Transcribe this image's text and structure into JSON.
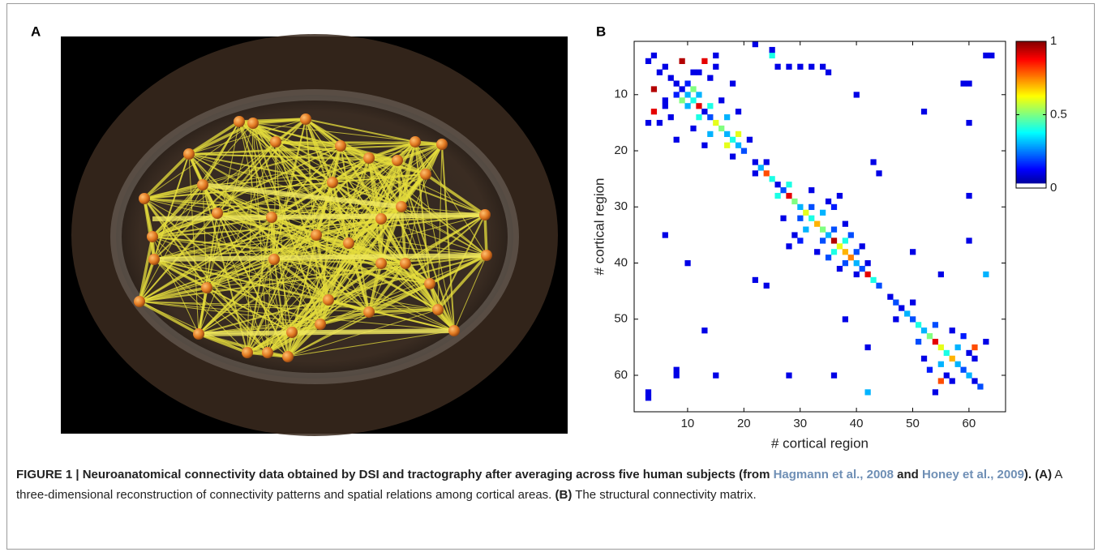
{
  "panel_labels": [
    "A",
    "B"
  ],
  "caption": [
    "FIGURE 1 | Neuroanatomical connectivity data obtained by DSI and tractography after averaging across five human subjects (from ",
    "Hagmann et al., 2008",
    " and ",
    "Honey et al., 2009",
    "). ",
    "(A)",
    " A three-dimensional reconstruction of connectivity patterns and spatial relations among cortical areas. ",
    "(B)",
    " The structural connectivity matrix."
  ],
  "chart_data": {
    "type": "heatmap",
    "xlabel": "# cortical region",
    "ylabel": "# cortical region",
    "xlim": [
      0.5,
      66.5
    ],
    "ylim": [
      0.5,
      66.5
    ],
    "y_reversed": true,
    "xticks": [
      10,
      20,
      30,
      40,
      50,
      60
    ],
    "yticks": [
      10,
      20,
      30,
      40,
      50,
      60
    ],
    "colormap": "jet",
    "zero_color": "#ffffff",
    "clim": [
      0,
      1
    ],
    "cticks": [
      0,
      0.5,
      1
    ],
    "x": [
      4,
      3,
      9,
      13,
      4,
      4,
      6,
      5,
      7,
      8,
      9,
      10,
      11,
      12,
      13,
      14,
      15,
      16,
      17,
      18,
      19,
      20,
      10,
      8,
      11,
      9,
      12,
      10,
      14,
      12,
      6,
      12,
      7,
      14,
      16,
      11,
      17,
      14,
      19,
      17,
      18,
      21,
      15,
      3,
      15,
      5,
      8,
      18,
      13,
      19,
      11,
      6,
      26,
      28,
      30,
      32,
      34,
      25,
      25,
      22,
      22,
      23,
      24,
      25,
      26,
      27,
      28,
      29,
      30,
      31,
      32,
      33,
      34,
      35,
      36,
      37,
      38,
      39,
      40,
      41,
      42,
      43,
      44,
      24,
      22,
      28,
      26,
      32,
      30,
      34,
      31,
      36,
      34,
      38,
      36,
      40,
      38,
      42,
      40,
      27,
      32,
      29,
      35,
      33,
      38,
      44,
      24,
      43,
      22,
      37,
      28,
      30,
      36,
      35,
      39,
      41,
      37,
      46,
      47,
      48,
      49,
      50,
      51,
      52,
      53,
      54,
      55,
      56,
      57,
      58,
      59,
      60,
      61,
      62,
      50,
      47,
      54,
      51,
      58,
      55,
      56,
      60,
      59,
      53,
      61,
      57,
      52,
      57,
      63,
      54,
      55,
      61,
      8,
      60,
      15,
      60,
      28,
      60,
      36,
      60,
      42,
      63,
      10,
      40,
      6,
      35,
      59,
      8,
      64,
      3,
      55,
      42,
      50,
      38,
      13,
      52,
      3,
      63
    ],
    "y": [
      3,
      4,
      4,
      4,
      9,
      13,
      5,
      6,
      7,
      8,
      9,
      10,
      11,
      12,
      13,
      14,
      15,
      16,
      17,
      18,
      19,
      20,
      8,
      10,
      9,
      11,
      10,
      12,
      12,
      14,
      12,
      6,
      14,
      7,
      11,
      16,
      14,
      17,
      17,
      19,
      21,
      18,
      3,
      15,
      5,
      15,
      18,
      8,
      19,
      13,
      6,
      11,
      5,
      5,
      5,
      5,
      5,
      3,
      2,
      1,
      22,
      23,
      24,
      25,
      26,
      27,
      28,
      29,
      30,
      31,
      32,
      33,
      34,
      35,
      36,
      37,
      38,
      39,
      40,
      41,
      42,
      43,
      44,
      22,
      24,
      26,
      28,
      30,
      32,
      31,
      34,
      34,
      36,
      36,
      38,
      38,
      40,
      40,
      42,
      32,
      27,
      35,
      29,
      38,
      33,
      24,
      44,
      22,
      43,
      28,
      37,
      36,
      30,
      39,
      35,
      37,
      41,
      46,
      47,
      48,
      49,
      50,
      51,
      52,
      53,
      54,
      55,
      56,
      57,
      58,
      59,
      60,
      61,
      62,
      47,
      50,
      51,
      54,
      55,
      58,
      60,
      56,
      53,
      59,
      57,
      61,
      57,
      52,
      54,
      63,
      61,
      55,
      60,
      8,
      60,
      15,
      60,
      28,
      60,
      36,
      63,
      42,
      40,
      10,
      35,
      6,
      8,
      59,
      3,
      64,
      42,
      55,
      38,
      50,
      52,
      13,
      63,
      3
    ],
    "values": [
      0.1,
      0.1,
      0.95,
      0.9,
      0.95,
      0.9,
      0.1,
      0.1,
      0.1,
      0.1,
      0.1,
      0.3,
      0.4,
      0.9,
      0.1,
      0.2,
      0.6,
      0.5,
      0.3,
      0.4,
      0.3,
      0.2,
      0.15,
      0.15,
      0.5,
      0.5,
      0.3,
      0.3,
      0.4,
      0.4,
      0.1,
      0.1,
      0.1,
      0.1,
      0.1,
      0.1,
      0.3,
      0.3,
      0.6,
      0.6,
      0.1,
      0.1,
      0.1,
      0.1,
      0.1,
      0.1,
      0.1,
      0.1,
      0.1,
      0.1,
      0.1,
      0.1,
      0.1,
      0.1,
      0.1,
      0.1,
      0.1,
      0.4,
      0.1,
      0.1,
      0.1,
      0.3,
      0.8,
      0.4,
      0.1,
      0.2,
      0.9,
      0.5,
      0.3,
      0.6,
      0.4,
      0.7,
      0.5,
      0.3,
      0.95,
      0.6,
      0.7,
      0.75,
      0.3,
      0.2,
      0.9,
      0.4,
      0.2,
      0.1,
      0.1,
      0.4,
      0.4,
      0.2,
      0.2,
      0.3,
      0.3,
      0.2,
      0.2,
      0.4,
      0.4,
      0.2,
      0.2,
      0.1,
      0.1,
      0.1,
      0.1,
      0.1,
      0.1,
      0.1,
      0.1,
      0.1,
      0.1,
      0.1,
      0.1,
      0.1,
      0.1,
      0.15,
      0.15,
      0.2,
      0.2,
      0.1,
      0.1,
      0.1,
      0.2,
      0.1,
      0.3,
      0.2,
      0.4,
      0.3,
      0.5,
      0.9,
      0.6,
      0.4,
      0.7,
      0.3,
      0.2,
      0.3,
      0.1,
      0.2,
      0.1,
      0.1,
      0.2,
      0.2,
      0.3,
      0.3,
      0.1,
      0.1,
      0.15,
      0.15,
      0.1,
      0.1,
      0.1,
      0.1,
      0.1,
      0.1,
      0.8,
      0.8,
      0.1,
      0.1,
      0.1,
      0.1,
      0.1,
      0.1,
      0.1,
      0.1,
      0.3,
      0.3,
      0.1,
      0.1,
      0.1,
      0.1,
      0.1,
      0.1,
      0.1,
      0.1,
      0.1,
      0.1,
      0.1,
      0.1,
      0.1,
      0.1,
      0.1,
      0.1
    ]
  }
}
